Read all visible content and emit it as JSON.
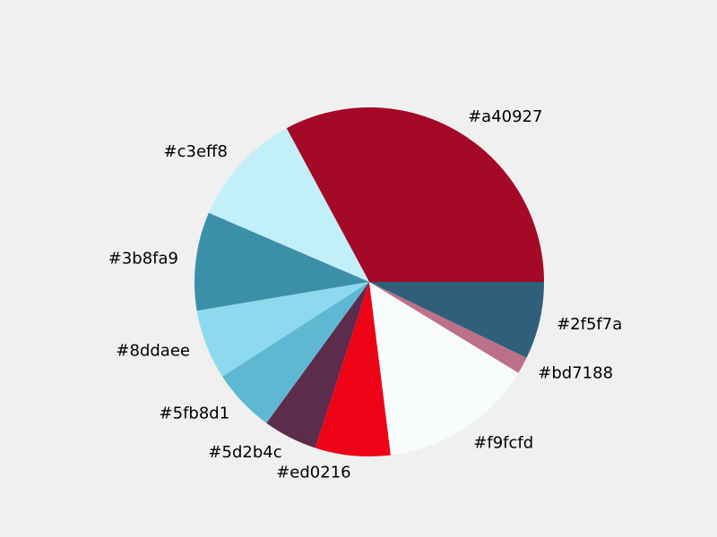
{
  "chart_data": {
    "type": "pie",
    "title": "",
    "labels": [
      "#a40927",
      "#c3eff8",
      "#3b8fa9",
      "#8ddaee",
      "#5fb8d1",
      "#5d2b4c",
      "#ed0216",
      "#f9fcfd",
      "#bd7188",
      "#2f5f7a"
    ],
    "values": [
      33.5,
      10.9,
      9.3,
      6.6,
      6.0,
      5.1,
      7.1,
      14.6,
      1.6,
      7.3
    ],
    "colors": [
      "#a40927",
      "#c3eff8",
      "#3b8fa9",
      "#8ddaee",
      "#5fb8d1",
      "#5d2b4c",
      "#ed0216",
      "#f9fcfd",
      "#bd7188",
      "#2f5f7a"
    ],
    "start_angle_deg": 0,
    "direction": "counterclockwise",
    "background": "#f0f0f0",
    "legend": "none"
  }
}
